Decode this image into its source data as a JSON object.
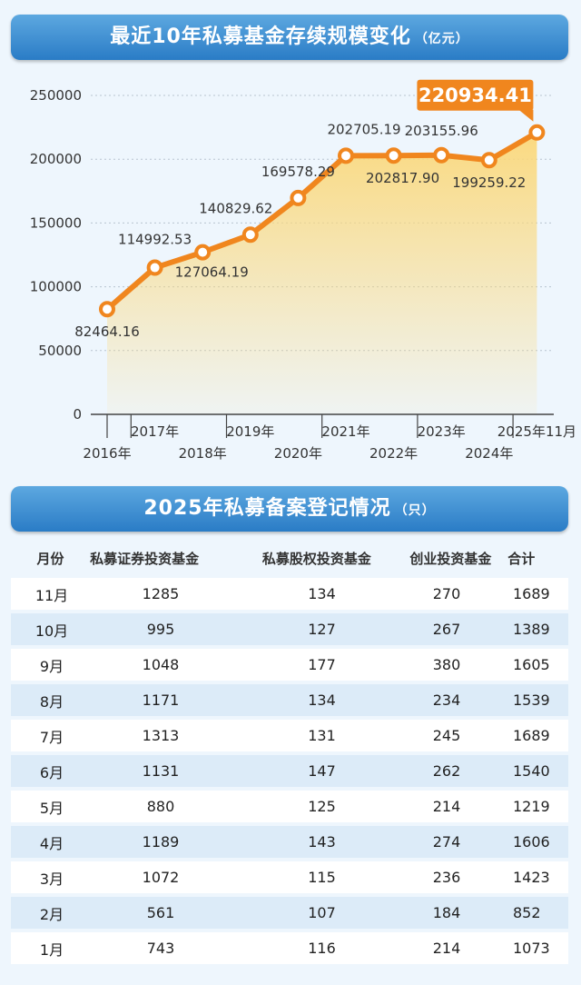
{
  "chart_title": "最近10年私募基金存续规模变化",
  "chart_unit": "（亿元）",
  "chart_data": {
    "type": "area",
    "title": "最近10年私募基金存续规模变化（亿元）",
    "x": [
      "2016年",
      "2017年",
      "2018年",
      "2019年",
      "2020年",
      "2021年",
      "2022年",
      "2023年",
      "2024年",
      "2025年11月"
    ],
    "values": [
      82464.16,
      114992.53,
      127064.19,
      140829.62,
      169578.29,
      202705.19,
      202817.9,
      203155.96,
      199259.22,
      220934.41
    ],
    "value_labels": [
      "82464.16",
      "114992.53",
      "127064.19",
      "140829.62",
      "169578.29",
      "202705.19",
      "202817.90",
      "203155.96",
      "199259.22",
      "220934.41"
    ],
    "y_ticks": [
      "0",
      "50000",
      "100000",
      "150000",
      "200000",
      "250000"
    ],
    "ylim": [
      0,
      250000
    ],
    "line_color": "#f0861e",
    "fill_color": "#fbd87a",
    "highlight_color": "#f0861e"
  },
  "table_title": "2025年私募备案登记情况",
  "table_unit": "（只）",
  "table": {
    "headers": [
      "月份",
      "私募证券投资基金",
      "私募股权投资基金",
      "创业投资基金",
      "合计"
    ],
    "rows": [
      [
        "11月",
        "1285",
        "134",
        "270",
        "1689"
      ],
      [
        "10月",
        "995",
        "127",
        "267",
        "1389"
      ],
      [
        "9月",
        "1048",
        "177",
        "380",
        "1605"
      ],
      [
        "8月",
        "1171",
        "134",
        "234",
        "1539"
      ],
      [
        "7月",
        "1313",
        "131",
        "245",
        "1689"
      ],
      [
        "6月",
        "1131",
        "147",
        "262",
        "1540"
      ],
      [
        "5月",
        "880",
        "125",
        "214",
        "1219"
      ],
      [
        "4月",
        "1189",
        "143",
        "274",
        "1606"
      ],
      [
        "3月",
        "1072",
        "115",
        "236",
        "1423"
      ],
      [
        "2月",
        "561",
        "107",
        "184",
        "852"
      ],
      [
        "1月",
        "743",
        "116",
        "214",
        "1073"
      ]
    ]
  }
}
